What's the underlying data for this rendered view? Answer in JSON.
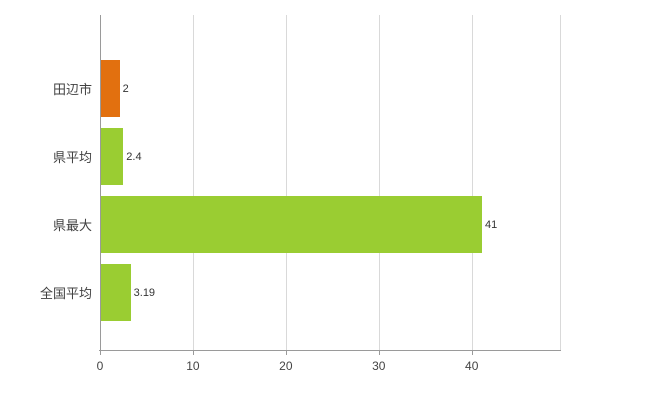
{
  "chart_data": {
    "type": "bar",
    "orientation": "horizontal",
    "title": "",
    "xlabel": "",
    "ylabel": "",
    "categories": [
      "田辺市",
      "県平均",
      "県最大",
      "全国平均"
    ],
    "values": [
      2,
      2.4,
      41,
      3.19
    ],
    "value_labels": [
      "2",
      "2.4",
      "41",
      "3.19"
    ],
    "bar_colors": [
      "#e2700f",
      "#9acd32",
      "#9acd32",
      "#9acd32"
    ],
    "xticks": [
      0,
      10,
      20,
      30,
      40
    ],
    "xtick_labels": [
      "0",
      "10",
      "20",
      "30",
      "40"
    ],
    "xlim": [
      0,
      49.5
    ],
    "grid": true,
    "legend": "none",
    "gridline_color": "#d9d9d9",
    "axis_color": "#9a9a9a",
    "background_color": "#ffffff"
  }
}
